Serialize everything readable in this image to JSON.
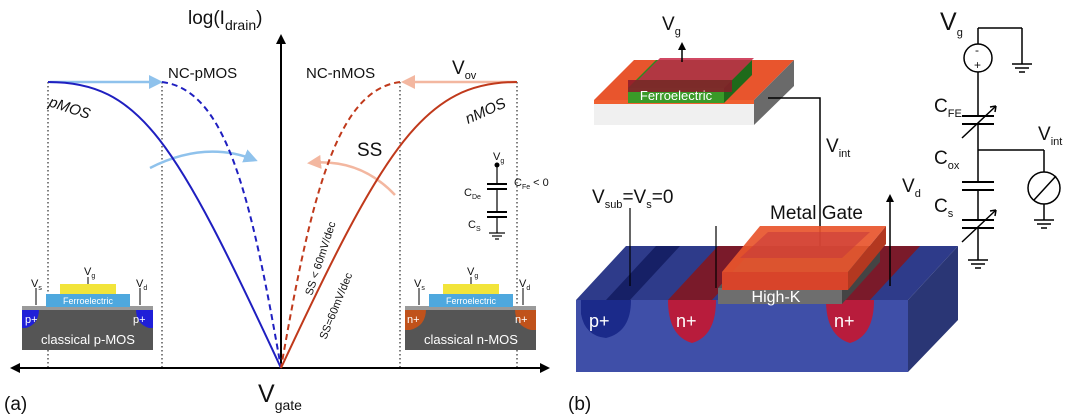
{
  "panel_a": {
    "tag": "(a)",
    "y_axis": {
      "text": "log(I",
      "sub": "drain",
      "close": ")"
    },
    "x_axis": {
      "text": "V",
      "sub": "gate"
    },
    "curve_labels": {
      "pmos": "pMOS",
      "nmos": "nMOS",
      "nc_pmos": "NC-pMOS",
      "nc_nmos": "NC-nMOS"
    },
    "v_ov": {
      "text": "V",
      "sub": "ov"
    },
    "ss": "SS",
    "slopes": {
      "steep": "SS < 60mV/dec",
      "normal": "SS=60mV/dec"
    },
    "cap_inset": {
      "vg": {
        "text": "V",
        "sub": "g"
      },
      "cfe": {
        "text": "C",
        "sub": "Fe",
        "suffix": " < 0"
      },
      "cde": {
        "text": "C",
        "sub": "De"
      },
      "cs": {
        "text": "C",
        "sub": "S"
      }
    },
    "p_device": {
      "vs": {
        "text": "V",
        "sub": "s"
      },
      "vg": {
        "text": "V",
        "sub": "g"
      },
      "vd": {
        "text": "V",
        "sub": "d"
      },
      "ferro": "Ferroelectric",
      "well_left": "p+",
      "well_right": "p+",
      "caption": "classical p-MOS"
    },
    "n_device": {
      "vs": {
        "text": "V",
        "sub": "s"
      },
      "vg": {
        "text": "V",
        "sub": "g"
      },
      "vd": {
        "text": "V",
        "sub": "d"
      },
      "ferro": "Ferroelectric",
      "well_left": "n+",
      "well_right": "n+",
      "caption": "classical n-MOS"
    }
  },
  "panel_b": {
    "tag": "(b)",
    "vg": {
      "text": "V",
      "sub": "g"
    },
    "ferro": "Ferroelectric",
    "vint_mid": {
      "text": "V",
      "sub": "int"
    },
    "vsub": {
      "a": "V",
      "a_sub": "sub",
      "mid": "=V",
      "b_sub": "s",
      "end": "=0"
    },
    "vd": {
      "text": "V",
      "sub": "d"
    },
    "metal_gate": "Metal Gate",
    "high_k": "High-K",
    "wells": {
      "p": "p+",
      "n1": "n+",
      "n2": "n+"
    },
    "circuit": {
      "vg": {
        "text": "V",
        "sub": "g"
      },
      "cfe": {
        "text": "C",
        "sub": "FE"
      },
      "cox": {
        "text": "C",
        "sub": "ox"
      },
      "cs": {
        "text": "C",
        "sub": "s"
      },
      "vint": {
        "text": "V",
        "sub": "int"
      },
      "plus": "+",
      "minus": "-"
    }
  },
  "colors": {
    "pmos": "#1f1fc0",
    "nmos": "#c0391b",
    "arrow_blue": "#8fc2ec",
    "arrow_salmon": "#f3b7a0",
    "metal": "#e8552d",
    "substrate": "#3f4fa8",
    "n_well": "#b81c3c",
    "p_well": "#1b2a8a",
    "ferro_green": "#3a8a2a",
    "ferro_blue": "#4ea8de",
    "gate_yellow": "#f2e43a"
  }
}
